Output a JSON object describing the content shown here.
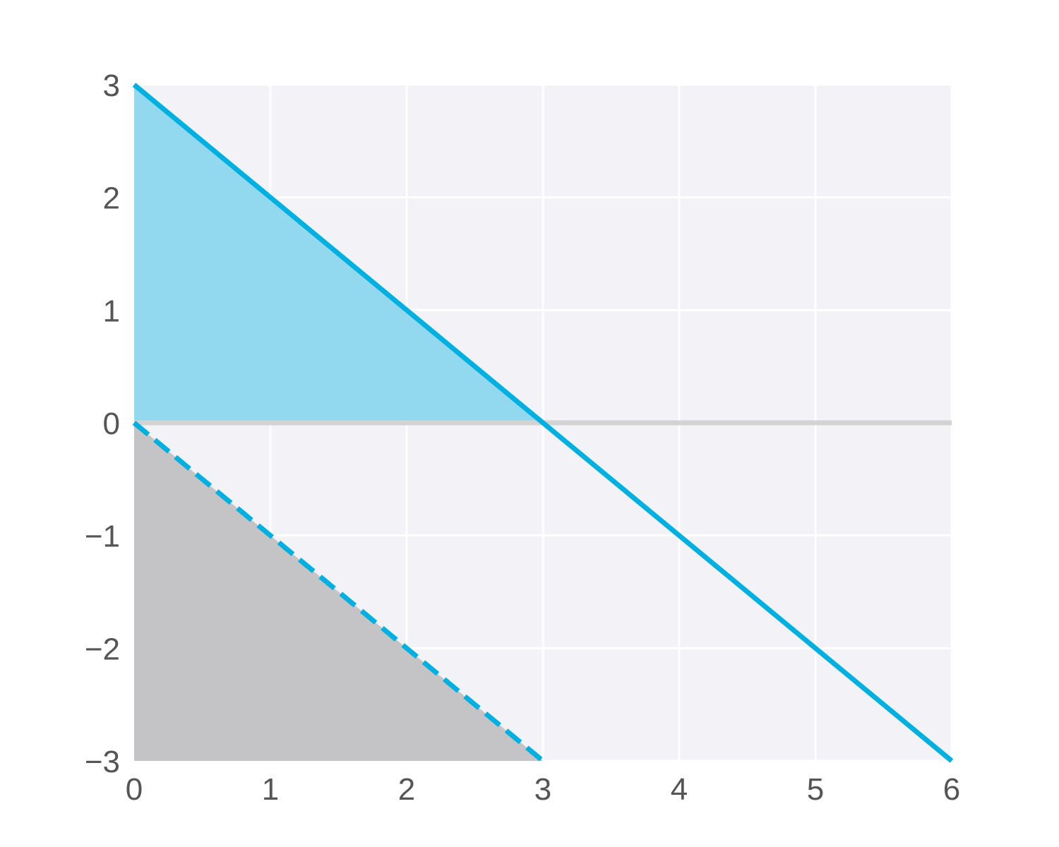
{
  "chart_data": {
    "type": "line",
    "title": "",
    "xlabel": "",
    "ylabel": "",
    "xlim": [
      0,
      6
    ],
    "ylim": [
      -3,
      3
    ],
    "grid": true,
    "x_ticks": [
      0,
      1,
      2,
      3,
      4,
      5,
      6
    ],
    "y_ticks": [
      -3,
      -2,
      -1,
      0,
      1,
      2,
      3
    ],
    "x_tick_labels": [
      "0",
      "1",
      "2",
      "3",
      "4",
      "5",
      "6"
    ],
    "y_tick_labels": [
      "−3",
      "−2",
      "−1",
      "0",
      "1",
      "2",
      "3"
    ],
    "series": [
      {
        "points": [
          [
            0,
            3
          ],
          [
            6,
            -3
          ]
        ],
        "style": "solid",
        "color": "#00b0e0"
      },
      {
        "points": [
          [
            0,
            0
          ],
          [
            3,
            -3
          ]
        ],
        "style": "dashed",
        "color": "#00b0e0"
      },
      {
        "points": [
          [
            0,
            0
          ],
          [
            6,
            0
          ]
        ],
        "style": "solid",
        "color": "#d3d3d3"
      }
    ],
    "filled_regions": [
      {
        "polygon": [
          [
            0,
            0
          ],
          [
            0,
            3
          ],
          [
            3,
            0
          ]
        ],
        "color": "#92d9f0"
      },
      {
        "polygon": [
          [
            0,
            0
          ],
          [
            0,
            -3
          ],
          [
            3,
            -3
          ]
        ],
        "color": "#c4c4c6"
      }
    ],
    "colors": {
      "background": "#f2f2f7",
      "grid": "#ffffff",
      "tick_text": "#555555"
    }
  }
}
